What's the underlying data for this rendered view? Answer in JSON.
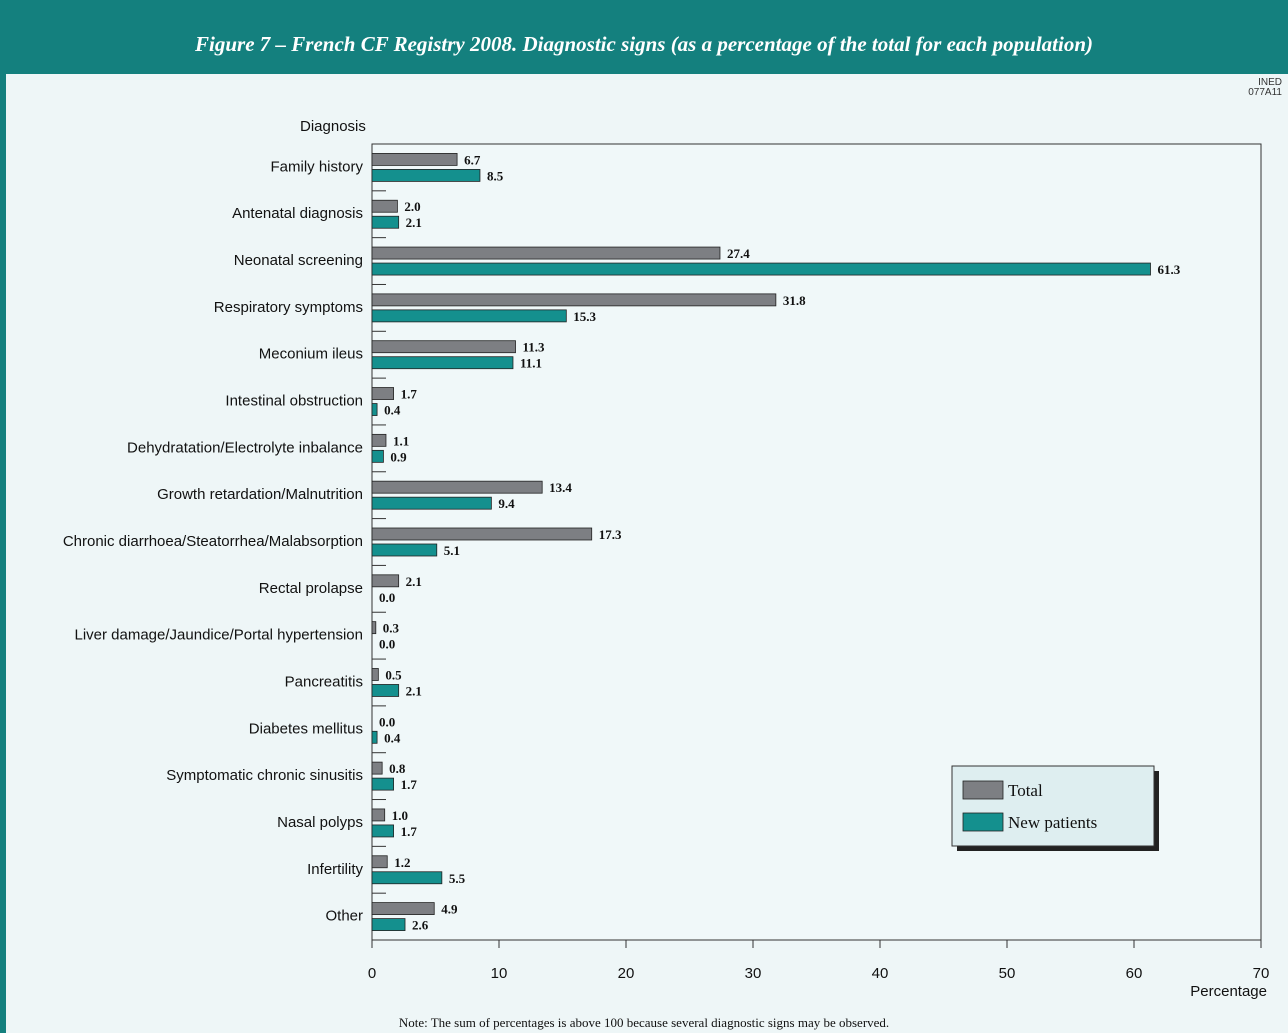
{
  "header": {
    "title": "Figure 7 – French CF Registry 2008. Diagnostic signs (as a percentage of the total for each population)"
  },
  "source_code": [
    "INED",
    "077A11"
  ],
  "note": "Note: The sum of percentages is above 100 because several diagnostic signs may be observed.",
  "colors": {
    "header": "#14807e",
    "total": "#7d7f83",
    "new_patients": "#14908e",
    "background": "#eef6f7"
  },
  "chart_data": {
    "type": "bar",
    "orientation": "horizontal",
    "categories": [
      "Family history",
      "Antenatal diagnosis",
      "Neonatal screening",
      "Respiratory symptoms",
      "Meconium ileus",
      "Intestinal obstruction",
      "Dehydratation/Electrolyte inbalance",
      "Growth retardation/Malnutrition",
      "Chronic diarrhoea/Steatorrhea/Malabsorption",
      "Rectal prolapse",
      "Liver damage/Jaundice/Portal hypertension",
      "Pancreatitis",
      "Diabetes mellitus",
      "Symptomatic chronic sinusitis",
      "Nasal polyps",
      "Infertility",
      "Other"
    ],
    "series": [
      {
        "name": "Total",
        "values": [
          6.7,
          2.0,
          27.4,
          31.8,
          11.3,
          1.7,
          1.1,
          13.4,
          17.3,
          2.1,
          0.3,
          0.5,
          0.0,
          0.8,
          1.0,
          1.2,
          4.9
        ]
      },
      {
        "name": "New patients",
        "values": [
          8.5,
          2.1,
          61.3,
          15.3,
          11.1,
          0.4,
          0.9,
          9.4,
          5.1,
          0.0,
          0.0,
          2.1,
          0.4,
          1.7,
          1.7,
          5.5,
          2.6
        ]
      }
    ],
    "value_labels": {
      "Total": [
        "6.7",
        "2.0",
        "27.4",
        "31.8",
        "11.3",
        "1.7",
        "1.1",
        "13.4",
        "17.3",
        "2.1",
        "0.3",
        "0.5",
        "0.0",
        "0.8",
        "1.0",
        "1.2",
        "4.9"
      ],
      "New patients": [
        "8.5",
        "2.1",
        "61.3",
        "15.3",
        "11.1",
        "0.4",
        "0.9",
        "9.4",
        "5.1",
        "0.0",
        "0.0",
        "2.1",
        "0.4",
        "1.7",
        "1.7",
        "5.5",
        "2.6"
      ]
    },
    "xlabel": "Percentage",
    "ylabel": "Diagnosis",
    "xlim": [
      0,
      70
    ],
    "xticks": [
      0,
      10,
      20,
      30,
      40,
      50,
      60,
      70
    ],
    "grid": false,
    "legend": {
      "entries": [
        "Total",
        "New patients"
      ],
      "placement": "bottom-right"
    }
  }
}
